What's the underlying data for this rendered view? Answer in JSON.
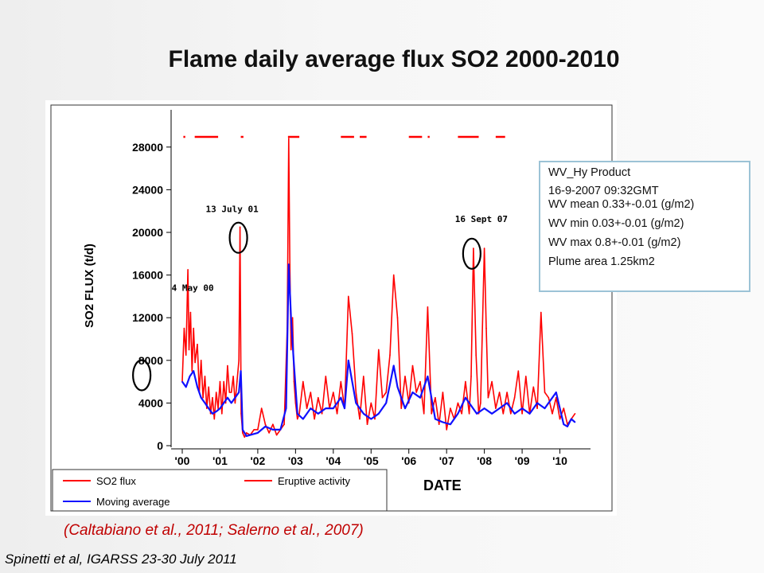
{
  "slide": {
    "title": "Flame daily average flux SO2 2000-2010",
    "citation": "(Caltabiano et al., 2011; Salerno et al., 2007)",
    "footer": "Spinetti et al, IGARSS 23-30 July 2011"
  },
  "info_box": {
    "lines": [
      "WV_Hy Product",
      "16-9-2007 09:32GMT",
      "WV mean 0.33+-0.01 (g/m2)",
      "WV min 0.03+-0.01 (g/m2)",
      "WV max 0.8+-0.01 (g/m2)",
      "Plume area 1.25km2"
    ]
  },
  "chart_data": {
    "type": "line",
    "xlabel": "DATE",
    "ylabel": "SO2 FLUX (t/d)",
    "xlim": [
      2000,
      2010.6
    ],
    "ylim": [
      0,
      30000
    ],
    "yticks": [
      0,
      4000,
      8000,
      12000,
      16000,
      20000,
      24000,
      28000
    ],
    "ytick_labels": [
      "0",
      "4000",
      "8000",
      "12000",
      "16000",
      "20000",
      "24000",
      "28000"
    ],
    "xticks": [
      2000,
      2001,
      2002,
      2003,
      2004,
      2005,
      2006,
      2007,
      2008,
      2009,
      2010
    ],
    "xtick_labels": [
      "'00",
      "'01",
      "'02",
      "'03",
      "'04",
      "'05",
      "'06",
      "'07",
      "'08",
      "'09",
      "'10"
    ],
    "grid": false,
    "legend_position": "bottom",
    "colors": {
      "so2": "#ff0000",
      "avg": "#1010ff",
      "eruptive": "#ff0000",
      "circle": "#000000"
    },
    "legend": [
      {
        "label": "SO2 flux",
        "color": "#ff0000"
      },
      {
        "label": "Eruptive activity",
        "color": "#ff0000"
      },
      {
        "label": "Moving average",
        "color": "#1010ff"
      }
    ],
    "eruptive_periods": [
      [
        2000.03,
        2000.08
      ],
      [
        2000.33,
        2000.95
      ],
      [
        2001.55,
        2001.62
      ],
      [
        2002.8,
        2003.1
      ],
      [
        2004.2,
        2004.55
      ],
      [
        2004.7,
        2004.88
      ],
      [
        2006.0,
        2006.35
      ],
      [
        2006.5,
        2006.55
      ],
      [
        2007.3,
        2007.85
      ],
      [
        2008.3,
        2008.55
      ]
    ],
    "annotations": [
      {
        "label": "4 May 00",
        "x": 2000.34,
        "y": 7800
      },
      {
        "label": "13 July 01",
        "x": 2001.53,
        "y": 19500
      },
      {
        "label": "16 Sept 07",
        "x": 2007.71,
        "y": 18000
      }
    ],
    "series": [
      {
        "name": "SO2 flux",
        "x": [
          2000.0,
          2000.05,
          2000.1,
          2000.15,
          2000.18,
          2000.22,
          2000.26,
          2000.3,
          2000.34,
          2000.4,
          2000.45,
          2000.5,
          2000.55,
          2000.6,
          2000.65,
          2000.7,
          2000.75,
          2000.8,
          2000.85,
          2000.9,
          2000.95,
          2001.0,
          2001.05,
          2001.1,
          2001.15,
          2001.2,
          2001.25,
          2001.3,
          2001.35,
          2001.4,
          2001.45,
          2001.5,
          2001.53,
          2001.56,
          2001.6,
          2001.65,
          2001.7,
          2001.8,
          2001.9,
          2002.0,
          2002.1,
          2002.2,
          2002.3,
          2002.4,
          2002.5,
          2002.6,
          2002.7,
          2002.78,
          2002.82,
          2002.85,
          2002.88,
          2002.92,
          2002.96,
          2003.0,
          2003.05,
          2003.1,
          2003.2,
          2003.3,
          2003.4,
          2003.5,
          2003.6,
          2003.7,
          2003.8,
          2003.9,
          2004.0,
          2004.1,
          2004.2,
          2004.3,
          2004.4,
          2004.5,
          2004.6,
          2004.7,
          2004.8,
          2004.9,
          2005.0,
          2005.1,
          2005.2,
          2005.3,
          2005.4,
          2005.5,
          2005.6,
          2005.7,
          2005.8,
          2005.9,
          2006.0,
          2006.1,
          2006.2,
          2006.3,
          2006.4,
          2006.5,
          2006.6,
          2006.7,
          2006.8,
          2006.9,
          2007.0,
          2007.1,
          2007.2,
          2007.3,
          2007.4,
          2007.5,
          2007.6,
          2007.65,
          2007.71,
          2007.78,
          2007.85,
          2007.9,
          2008.0,
          2008.05,
          2008.1,
          2008.2,
          2008.3,
          2008.4,
          2008.5,
          2008.6,
          2008.7,
          2008.8,
          2008.9,
          2009.0,
          2009.1,
          2009.2,
          2009.3,
          2009.4,
          2009.5,
          2009.6,
          2009.7,
          2009.8,
          2009.9,
          2010.0,
          2010.1,
          2010.2,
          2010.3,
          2010.4
        ],
        "y": [
          6000,
          11000,
          8500,
          16500,
          9000,
          12500,
          7000,
          11000,
          7800,
          9500,
          5000,
          8000,
          4500,
          6500,
          3500,
          5500,
          3000,
          4500,
          2500,
          5000,
          3500,
          6000,
          3000,
          6000,
          4000,
          7500,
          5000,
          5000,
          6500,
          4000,
          6000,
          8000,
          20500,
          3000,
          1200,
          800,
          1200,
          1000,
          1500,
          1500,
          3500,
          2000,
          1200,
          2000,
          1000,
          1500,
          2000,
          11000,
          28800,
          17000,
          9000,
          12000,
          6000,
          4000,
          2500,
          3000,
          6000,
          3500,
          5000,
          2500,
          4500,
          3000,
          6500,
          3500,
          5000,
          3000,
          6000,
          3500,
          14000,
          10500,
          5000,
          2500,
          6500,
          2000,
          4000,
          2500,
          9000,
          4500,
          5000,
          8500,
          16000,
          12000,
          3500,
          6500,
          4000,
          7500,
          5000,
          6000,
          3000,
          13000,
          3000,
          4500,
          2000,
          5000,
          1500,
          3500,
          2500,
          4000,
          3000,
          6000,
          3000,
          6500,
          18500,
          8500,
          3000,
          4000,
          18500,
          11000,
          4500,
          6000,
          3500,
          5000,
          3000,
          5000,
          3000,
          4500,
          7000,
          3000,
          6500,
          3000,
          5500,
          3500,
          12500,
          5000,
          4500,
          3000,
          4500,
          2500,
          3500,
          2000,
          2500,
          3000
        ]
      },
      {
        "name": "Moving average",
        "x": [
          2000.0,
          2000.1,
          2000.2,
          2000.3,
          2000.4,
          2000.5,
          2000.6,
          2000.7,
          2000.8,
          2000.9,
          2001.0,
          2001.1,
          2001.2,
          2001.3,
          2001.4,
          2001.5,
          2001.55,
          2001.6,
          2001.7,
          2001.8,
          2002.0,
          2002.2,
          2002.4,
          2002.6,
          2002.75,
          2002.82,
          2002.88,
          2002.95,
          2003.05,
          2003.2,
          2003.4,
          2003.6,
          2003.8,
          2004.0,
          2004.2,
          2004.3,
          2004.4,
          2004.6,
          2004.8,
          2005.0,
          2005.2,
          2005.4,
          2005.6,
          2005.7,
          2005.9,
          2006.1,
          2006.3,
          2006.5,
          2006.7,
          2006.9,
          2007.1,
          2007.3,
          2007.5,
          2007.7,
          2007.8,
          2008.0,
          2008.2,
          2008.4,
          2008.6,
          2008.8,
          2009.0,
          2009.2,
          2009.4,
          2009.6,
          2009.8,
          2009.9,
          2010.0,
          2010.1,
          2010.2,
          2010.3,
          2010.4
        ],
        "y": [
          6000,
          5500,
          6500,
          7000,
          5500,
          4500,
          4000,
          3500,
          3000,
          3200,
          3500,
          4000,
          4500,
          4000,
          4500,
          5000,
          7000,
          1500,
          900,
          1000,
          1200,
          1800,
          1500,
          1500,
          3500,
          17000,
          12000,
          8000,
          3000,
          2500,
          3500,
          3000,
          3500,
          3500,
          4500,
          3500,
          8000,
          4000,
          3000,
          2500,
          3000,
          4000,
          7500,
          5500,
          3500,
          5000,
          4500,
          6500,
          2500,
          2200,
          2000,
          3000,
          4500,
          3500,
          3000,
          3500,
          3000,
          3500,
          4000,
          3000,
          3500,
          3000,
          4000,
          3500,
          4500,
          5000,
          3500,
          2000,
          1800,
          2500,
          2200
        ]
      }
    ]
  }
}
